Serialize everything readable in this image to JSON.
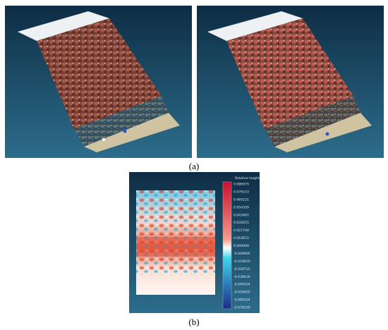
{
  "captions": {
    "a": "(a)",
    "b": "(b)"
  },
  "colorbar": {
    "title": "Relative height",
    "ticks": [
      "0.086975",
      "0.076103",
      "0.065231",
      "0.054359",
      "0.043487",
      "0.032615",
      "0.021744",
      "0.010872",
      "0.000000",
      "-0.009905",
      "-0.019810",
      "-0.029715",
      "-0.039619",
      "-0.049524",
      "-0.059429",
      "-0.069334",
      "-0.079239"
    ]
  },
  "colors": {
    "background_top": "#0e2d44",
    "background_bottom": "#2d6d8c",
    "pebble_red": "#8c4a3e",
    "pebble_blue": "#3b5c8a",
    "sand": "#cfc3a2",
    "colormap_high": "#c8102e",
    "colormap_mid": "#ffffff",
    "colormap_low": "#1a2d8c"
  }
}
